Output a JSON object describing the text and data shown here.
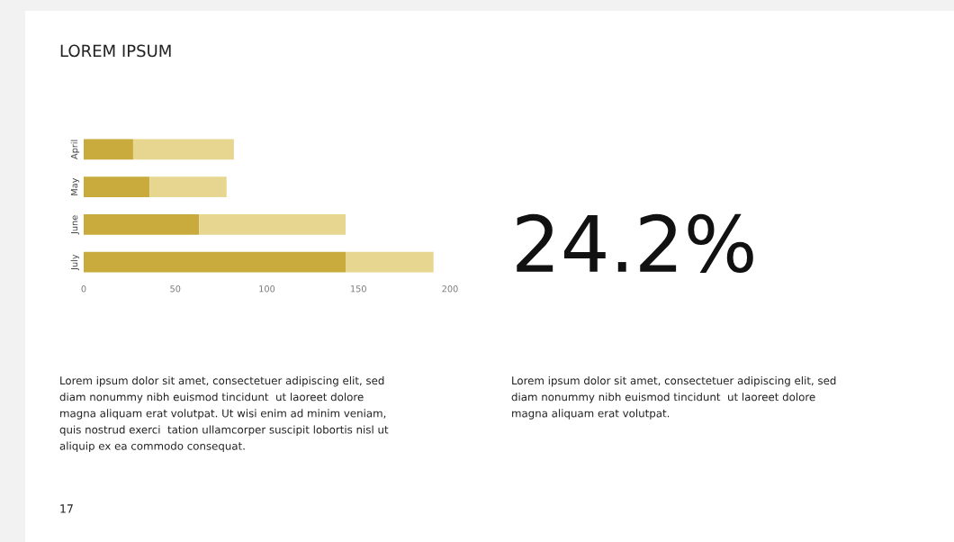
{
  "chart_data": {
    "type": "bar",
    "orientation": "horizontal",
    "stacked": true,
    "title": "LOREM IPSUM",
    "categories": [
      "April",
      "May",
      "June",
      "July"
    ],
    "series": [
      {
        "color": "#c8ab3c",
        "values": [
          27,
          36,
          63,
          143
        ]
      },
      {
        "color": "#e6d690",
        "values": [
          55,
          42,
          80,
          48
        ]
      }
    ],
    "xlim": [
      0,
      200
    ],
    "xticks": [
      0,
      50,
      100,
      150,
      200
    ],
    "grid": false,
    "annotations": [
      "24.2%",
      "Lorem ipsum dolor sit amet, consectetuer adipiscing elit, sed\ndiam nonummy nibh euismod tincidunt  ut laoreet dolore\nmagna aliquam erat volutpat. Ut wisi enim ad minim veniam,\nquis nostrud exerci  tation ullamcorper suscipit lobortis nisl ut\naliquip ex ea commodo consequat.",
      "Lorem ipsum dolor sit amet, consectetuer adipiscing elit, sed\ndiam nonummy nibh euismod tincidunt  ut laoreet dolore\nmagna aliquam erat volutpat.",
      "17"
    ]
  }
}
